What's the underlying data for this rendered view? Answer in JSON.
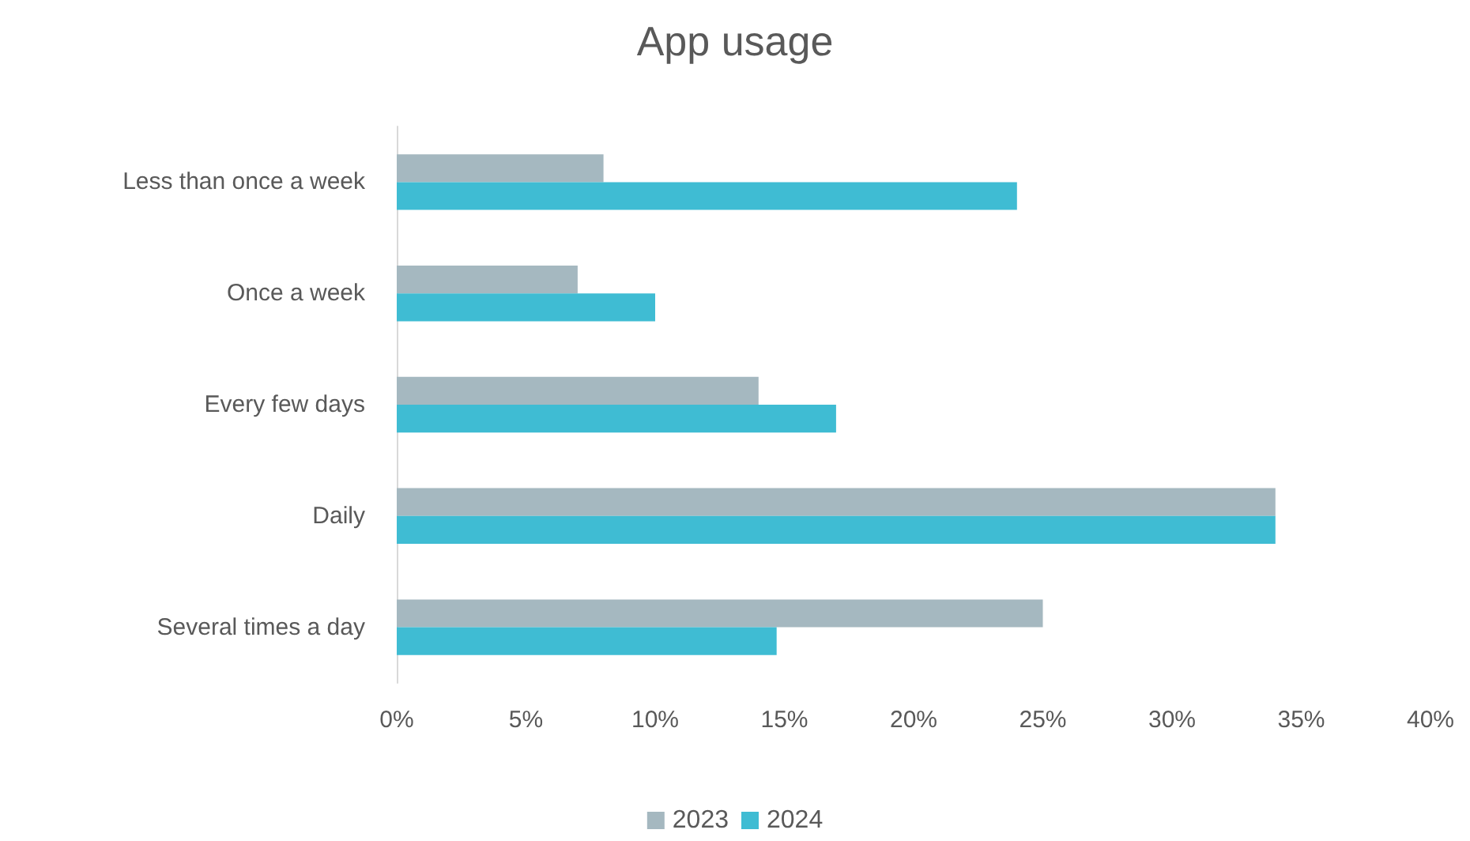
{
  "chart_data": {
    "type": "bar",
    "orientation": "horizontal",
    "title": "App usage",
    "categories": [
      "Less than once a week",
      "Once a week",
      "Every few days",
      "Daily",
      "Several times a day"
    ],
    "series": [
      {
        "name": "2023",
        "color": "#a5b8c0",
        "values": [
          8,
          7,
          14,
          34,
          25
        ]
      },
      {
        "name": "2024",
        "color": "#3fbcd3",
        "values": [
          24,
          10,
          17,
          34,
          14.7
        ]
      }
    ],
    "xlim": [
      0,
      40
    ],
    "xticks": [
      {
        "value": 0,
        "label": "0%"
      },
      {
        "value": 5,
        "label": "5%"
      },
      {
        "value": 10,
        "label": "10%"
      },
      {
        "value": 15,
        "label": "15%"
      },
      {
        "value": 20,
        "label": "20%"
      },
      {
        "value": 25,
        "label": "25%"
      },
      {
        "value": 30,
        "label": "30%"
      },
      {
        "value": 35,
        "label": "35%"
      },
      {
        "value": 40,
        "label": "40%"
      }
    ],
    "grid": false,
    "legend": "bottom"
  }
}
